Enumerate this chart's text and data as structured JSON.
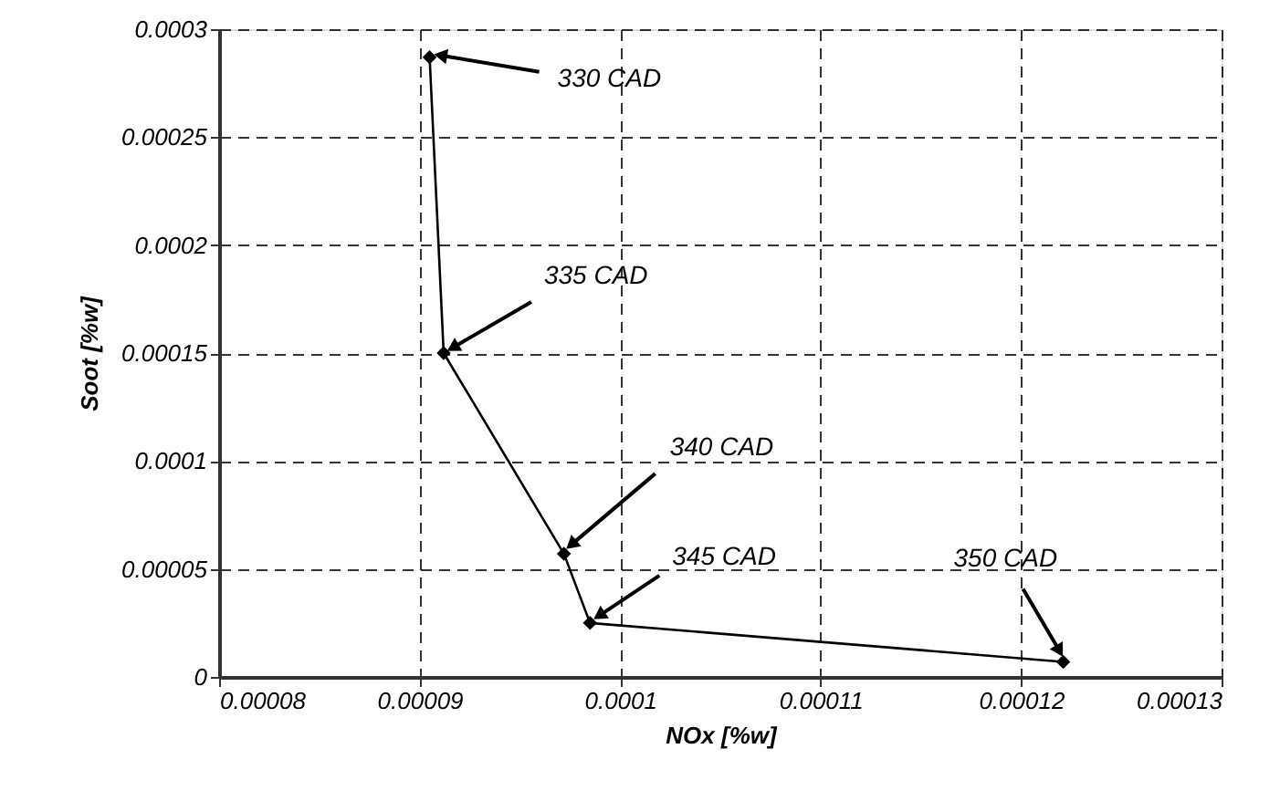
{
  "chart_data": {
    "type": "line",
    "xlabel": "NOx [%w]",
    "ylabel": "Soot [%w]",
    "x": [
      9.05e-05,
      9.12e-05,
      9.72e-05,
      9.85e-05,
      0.0001221
    ],
    "series": [
      {
        "color": "#000000",
        "values": [
          0.000287,
          0.00015,
          5.7e-05,
          2.5e-05,
          7e-06
        ]
      }
    ],
    "xlim": [
      8e-05,
      0.00013
    ],
    "xticks": [
      {
        "value": 8e-05,
        "label": "0.00008"
      },
      {
        "value": 9e-05,
        "label": "0.00009"
      },
      {
        "value": 0.0001,
        "label": "0.0001"
      },
      {
        "value": 0.00011,
        "label": "0.00011"
      },
      {
        "value": 0.00012,
        "label": "0.00012"
      },
      {
        "value": 0.00013,
        "label": "0.00013"
      }
    ],
    "ylim": [
      0,
      0.0003
    ],
    "yticks": [
      {
        "value": 0,
        "label": "0"
      },
      {
        "value": 5e-05,
        "label": "0.00005"
      },
      {
        "value": 0.0001,
        "label": "0.0001"
      },
      {
        "value": 0.00015,
        "label": "0.00015"
      },
      {
        "value": 0.0002,
        "label": "0.0002"
      },
      {
        "value": 0.00025,
        "label": "0.00025"
      },
      {
        "value": 0.0003,
        "label": "0.0003"
      }
    ],
    "grid": true,
    "marker": "diamond",
    "line_style": "solid",
    "annotations": [
      {
        "text": "330 CAD",
        "x": 9.05e-05,
        "y": 0.000287
      },
      {
        "text": "335 CAD",
        "x": 9.12e-05,
        "y": 0.00015
      },
      {
        "text": "340 CAD",
        "x": 9.72e-05,
        "y": 5.7e-05
      },
      {
        "text": "345 CAD",
        "x": 9.85e-05,
        "y": 2.5e-05
      },
      {
        "text": "350 CAD",
        "x": 0.0001221,
        "y": 7e-06
      }
    ]
  }
}
